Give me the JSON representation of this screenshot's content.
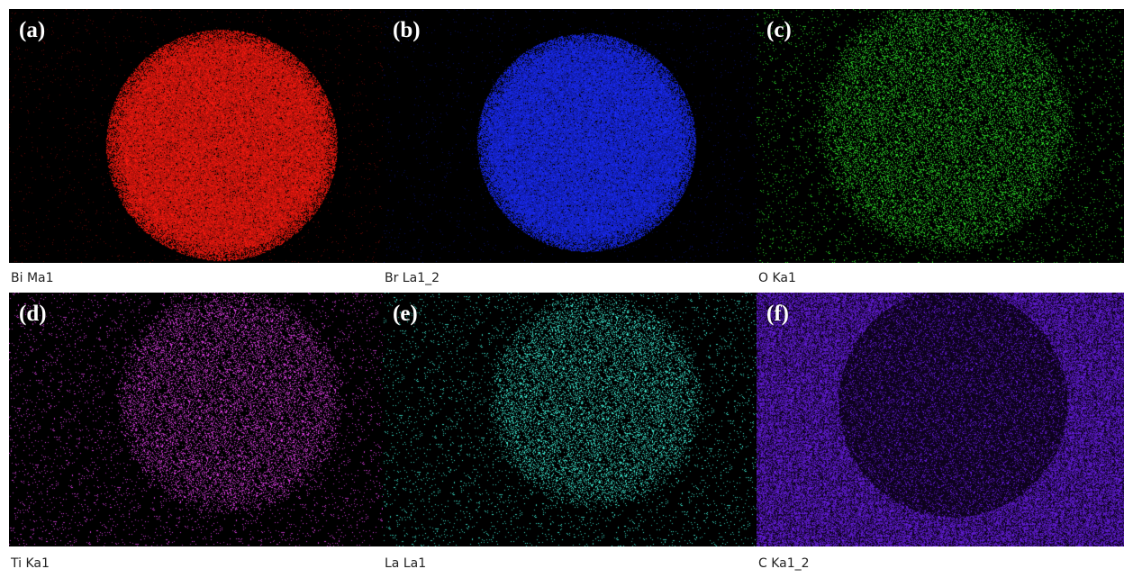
{
  "panels": [
    {
      "label": "(a)",
      "caption": "Bi Ma1",
      "color": "#ff1a10",
      "style": "dense-disc"
    },
    {
      "label": "(b)",
      "caption": "Br La1_2",
      "color": "#1a2cff",
      "style": "dense-disc"
    },
    {
      "label": "(c)",
      "caption": "O Ka1",
      "color": "#2ee02a",
      "style": "sparse-disc"
    },
    {
      "label": "(d)",
      "caption": "Ti Ka1",
      "color": "#e040e8",
      "style": "sparse-disc"
    },
    {
      "label": "(e)",
      "caption": "La La1",
      "color": "#40f0d8",
      "style": "sparse-disc"
    },
    {
      "label": "(f)",
      "caption": "C Ka1_2",
      "color": "#6a1ee8",
      "style": "inverse-disc"
    }
  ]
}
